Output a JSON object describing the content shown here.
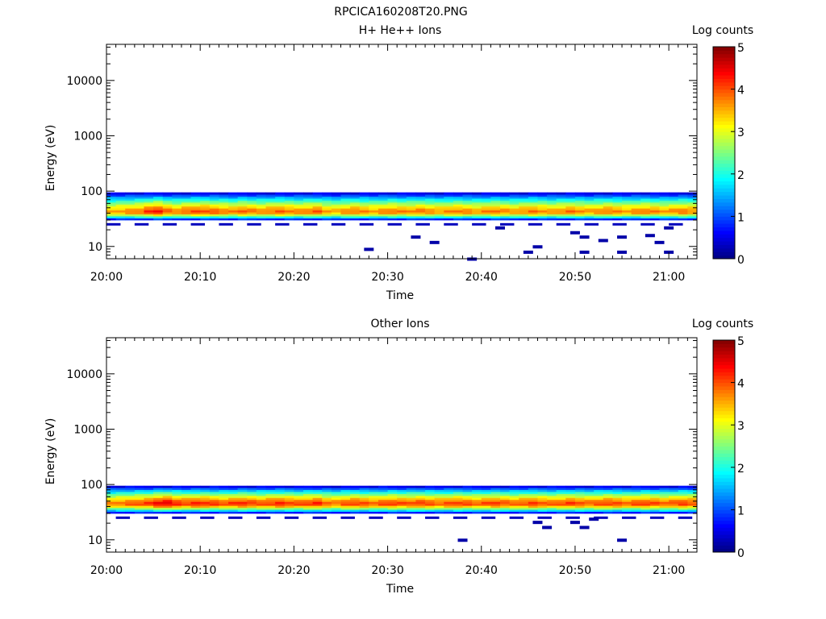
{
  "page_title": "RPCICA160208T20.PNG",
  "chart_data": [
    {
      "type": "heatmap",
      "title": "H+ He++ Ions",
      "xlabel": "Time",
      "ylabel": "Energy (eV)",
      "x_ticks": [
        "20:00",
        "20:10",
        "20:20",
        "20:30",
        "20:40",
        "20:50",
        "21:00"
      ],
      "x_range": [
        "20:00",
        "21:03"
      ],
      "y_scale": "log",
      "y_ticks": [
        "10",
        "100",
        "1000",
        "10000"
      ],
      "y_range": [
        6,
        45000
      ],
      "colorbar": {
        "label": "Log counts",
        "ticks": [
          "0",
          "1",
          "2",
          "3",
          "4",
          "5"
        ],
        "range": [
          0,
          5
        ]
      },
      "band": {
        "low_edge_eV": 30,
        "high_edge_eV": 95,
        "peak_eV": 42,
        "peak_log_counts": [
          3.6,
          3.7,
          3.8,
          3.9,
          4.2,
          4.4,
          4.0,
          3.8,
          4.0,
          4.1,
          4.1,
          4.0,
          3.9,
          3.8,
          4.0,
          3.9,
          3.8,
          3.9,
          4.0,
          3.9,
          3.8,
          3.9,
          4.0,
          3.7,
          3.6,
          3.8,
          3.9,
          3.8,
          3.7,
          3.8,
          3.9,
          3.8,
          3.8,
          3.9,
          3.8,
          3.7,
          3.8,
          3.9,
          3.8,
          3.7,
          3.8,
          3.9,
          3.8,
          3.7,
          3.8,
          3.9,
          3.8,
          3.7,
          3.8,
          3.9,
          3.8,
          3.7,
          3.8,
          3.9,
          3.8,
          3.7,
          3.8,
          3.9,
          3.8,
          3.7,
          3.8,
          3.9,
          3.8
        ]
      },
      "sparse_points": [
        {
          "time": "20:28",
          "energy_eV": 9,
          "log_counts": 0.2
        },
        {
          "time": "20:33",
          "energy_eV": 15,
          "log_counts": 0.2
        },
        {
          "time": "20:35",
          "energy_eV": 12,
          "log_counts": 0.2
        },
        {
          "time": "20:39",
          "energy_eV": 6,
          "log_counts": 0.2
        },
        {
          "time": "20:42",
          "energy_eV": 22,
          "log_counts": 0.2
        },
        {
          "time": "20:45",
          "energy_eV": 8,
          "log_counts": 0.2
        },
        {
          "time": "20:46",
          "energy_eV": 10,
          "log_counts": 0.2
        },
        {
          "time": "20:50",
          "energy_eV": 18,
          "log_counts": 0.2
        },
        {
          "time": "20:51",
          "energy_eV": 15,
          "log_counts": 0.2
        },
        {
          "time": "20:51",
          "energy_eV": 8,
          "log_counts": 0.2
        },
        {
          "time": "20:53",
          "energy_eV": 13,
          "log_counts": 0.2
        },
        {
          "time": "20:55",
          "energy_eV": 15,
          "log_counts": 0.2
        },
        {
          "time": "20:55",
          "energy_eV": 8,
          "log_counts": 0.2
        },
        {
          "time": "20:58",
          "energy_eV": 16,
          "log_counts": 0.2
        },
        {
          "time": "20:59",
          "energy_eV": 12,
          "log_counts": 0.2
        },
        {
          "time": "21:00",
          "energy_eV": 8,
          "log_counts": 0.2
        },
        {
          "time": "21:00",
          "energy_eV": 22,
          "log_counts": 0.2
        }
      ]
    },
    {
      "type": "heatmap",
      "title": "Other Ions",
      "xlabel": "Time",
      "ylabel": "Energy (eV)",
      "x_ticks": [
        "20:00",
        "20:10",
        "20:20",
        "20:30",
        "20:40",
        "20:50",
        "21:00"
      ],
      "x_range": [
        "20:00",
        "21:03"
      ],
      "y_scale": "log",
      "y_ticks": [
        "10",
        "100",
        "1000",
        "10000"
      ],
      "y_range": [
        6,
        45000
      ],
      "colorbar": {
        "label": "Log counts",
        "ticks": [
          "0",
          "1",
          "2",
          "3",
          "4",
          "5"
        ],
        "range": [
          0,
          5
        ]
      },
      "band": {
        "low_edge_eV": 30,
        "high_edge_eV": 95,
        "peak_eV": 45,
        "peak_log_counts": [
          3.8,
          3.9,
          4.0,
          4.1,
          4.2,
          4.5,
          4.6,
          4.3,
          4.2,
          4.3,
          4.3,
          4.2,
          4.1,
          4.2,
          4.3,
          4.2,
          4.1,
          4.2,
          4.3,
          4.2,
          4.1,
          4.2,
          4.3,
          4.0,
          3.9,
          4.1,
          4.2,
          4.1,
          4.0,
          4.1,
          4.2,
          4.1,
          4.1,
          4.2,
          4.1,
          4.0,
          4.1,
          4.2,
          4.1,
          4.0,
          4.1,
          4.2,
          4.1,
          4.0,
          4.1,
          4.2,
          4.1,
          4.0,
          4.1,
          4.2,
          4.1,
          4.0,
          4.1,
          4.2,
          4.1,
          4.0,
          4.1,
          4.2,
          4.1,
          4.0,
          4.1,
          4.2,
          4.1
        ]
      },
      "sparse_points": [
        {
          "time": "20:38",
          "energy_eV": 10,
          "log_counts": 0.2
        },
        {
          "time": "20:46",
          "energy_eV": 21,
          "log_counts": 0.2
        },
        {
          "time": "20:47",
          "energy_eV": 17,
          "log_counts": 0.2
        },
        {
          "time": "20:50",
          "energy_eV": 21,
          "log_counts": 0.2
        },
        {
          "time": "20:51",
          "energy_eV": 17,
          "log_counts": 0.2
        },
        {
          "time": "20:55",
          "energy_eV": 10,
          "log_counts": 0.2
        },
        {
          "time": "20:52",
          "energy_eV": 24,
          "log_counts": 0.2
        }
      ]
    }
  ]
}
